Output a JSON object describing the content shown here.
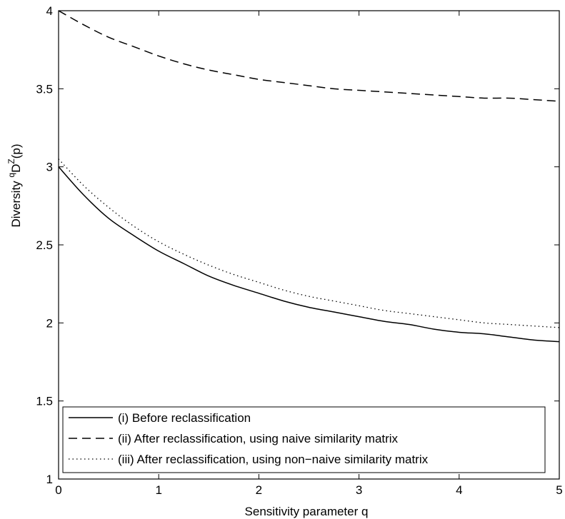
{
  "chart_data": {
    "type": "line",
    "xlabel": "Sensitivity parameter q",
    "ylabel": "Diversity",
    "ylabel_sup1": "q",
    "ylabel_main": "D",
    "ylabel_sup2": "Z",
    "ylabel_tail": "(p)",
    "xlim": [
      0,
      5
    ],
    "ylim": [
      1,
      4
    ],
    "xticks": [
      0,
      1,
      2,
      3,
      4,
      5
    ],
    "xtick_labels": [
      "0",
      "1",
      "2",
      "3",
      "4",
      "5"
    ],
    "yticks": [
      1,
      1.5,
      2,
      2.5,
      3,
      3.5,
      4
    ],
    "ytick_labels": [
      "1",
      "1.5",
      "2",
      "2.5",
      "3",
      "3.5",
      "4"
    ],
    "grid": false,
    "legend_position": "bottom",
    "x": [
      0,
      0.25,
      0.5,
      0.75,
      1,
      1.25,
      1.5,
      1.75,
      2,
      2.25,
      2.5,
      2.75,
      3,
      3.25,
      3.5,
      3.75,
      4,
      4.25,
      4.5,
      4.75,
      5
    ],
    "series": [
      {
        "name": "(i) Before reclassification",
        "style": "solid",
        "values": [
          3.0,
          2.82,
          2.67,
          2.56,
          2.46,
          2.38,
          2.3,
          2.24,
          2.19,
          2.14,
          2.1,
          2.07,
          2.04,
          2.01,
          1.99,
          1.96,
          1.94,
          1.93,
          1.91,
          1.89,
          1.88
        ]
      },
      {
        "name": "(ii) After reclassification, using naive similarity matrix",
        "style": "dashed",
        "values": [
          4.0,
          3.91,
          3.83,
          3.77,
          3.71,
          3.66,
          3.62,
          3.59,
          3.56,
          3.54,
          3.52,
          3.5,
          3.49,
          3.48,
          3.47,
          3.46,
          3.45,
          3.44,
          3.44,
          3.43,
          3.42
        ]
      },
      {
        "name": "(iii) After reclassification, using non−naive similarity matrix",
        "style": "dotted",
        "values": [
          3.05,
          2.88,
          2.74,
          2.62,
          2.52,
          2.44,
          2.37,
          2.31,
          2.26,
          2.21,
          2.17,
          2.14,
          2.11,
          2.08,
          2.06,
          2.04,
          2.02,
          2.0,
          1.99,
          1.98,
          1.97
        ]
      }
    ]
  }
}
